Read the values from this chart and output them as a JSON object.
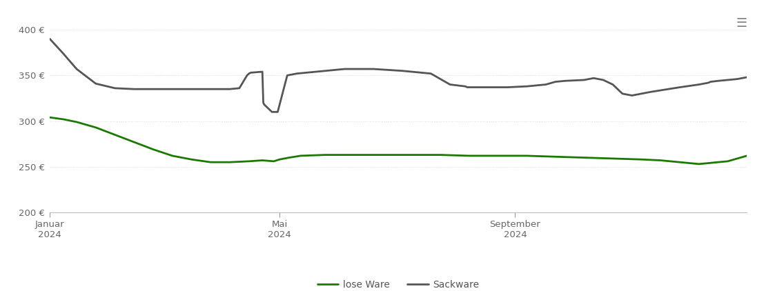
{
  "ylim": [
    200,
    415
  ],
  "yticks": [
    200,
    250,
    300,
    350,
    400
  ],
  "ytick_labels": [
    "200 €",
    "250 €",
    "300 €",
    "350 €",
    "400 €"
  ],
  "xtick_positions": [
    1,
    121,
    244
  ],
  "xtick_labels": [
    "Januar\n2024",
    "Mai\n2024",
    "September\n2024"
  ],
  "legend_labels": [
    "lose Ware",
    "Sackware"
  ],
  "lose_ware_color": "#1a7a00",
  "sackware_color": "#555555",
  "background_color": "#ffffff",
  "grid_color": "#dddddd",
  "line_width": 2.0,
  "lose_ware": {
    "x": [
      1,
      8,
      15,
      25,
      35,
      45,
      55,
      65,
      75,
      85,
      95,
      105,
      112,
      118,
      121,
      126,
      132,
      145,
      160,
      175,
      190,
      205,
      220,
      235,
      250,
      265,
      280,
      295,
      310,
      320,
      330,
      340,
      355,
      365
    ],
    "y": [
      304,
      302,
      299,
      293,
      285,
      277,
      269,
      262,
      258,
      255,
      255,
      256,
      257,
      256,
      258,
      260,
      262,
      263,
      263,
      263,
      263,
      263,
      262,
      262,
      262,
      261,
      260,
      259,
      258,
      257,
      255,
      253,
      256,
      262
    ]
  },
  "sackware": {
    "x": [
      1,
      8,
      15,
      25,
      35,
      45,
      55,
      65,
      75,
      85,
      95,
      100,
      104,
      105,
      106,
      112,
      112.5,
      113,
      117,
      118,
      119,
      120,
      125,
      130,
      140,
      155,
      170,
      185,
      200,
      210,
      218,
      219,
      220,
      230,
      240,
      250,
      260,
      265,
      270,
      280,
      285,
      290,
      295,
      300,
      305,
      315,
      330,
      340,
      345,
      346,
      350,
      355,
      360,
      365
    ],
    "y": [
      390,
      374,
      357,
      341,
      336,
      335,
      335,
      335,
      335,
      335,
      335,
      336,
      350,
      352,
      353,
      354,
      320,
      318,
      310,
      310,
      310,
      310,
      350,
      352,
      354,
      357,
      357,
      355,
      352,
      340,
      338,
      337,
      337,
      337,
      337,
      338,
      340,
      343,
      344,
      345,
      347,
      345,
      340,
      330,
      328,
      332,
      337,
      340,
      342,
      343,
      344,
      345,
      346,
      348
    ]
  }
}
